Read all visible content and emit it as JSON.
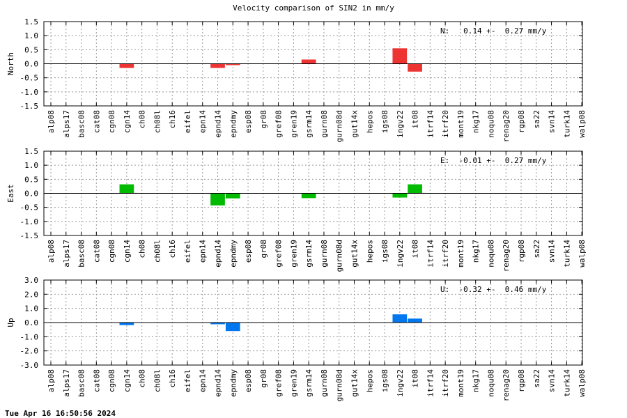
{
  "title": "Velocity comparison of SIN2 in mm/y",
  "timestamp": "Tue Apr 16 16:50:56 2024",
  "chart_data": [
    {
      "type": "bar",
      "ylabel": "North",
      "summary": "N:   0.14 +-  0.27 mm/y",
      "color": "#ee3333",
      "ylim": [
        -1.5,
        1.5
      ],
      "yticks": [
        -1.5,
        -1.0,
        -0.5,
        0.0,
        0.5,
        1.0,
        1.5
      ],
      "ytick_labels": [
        "-1.5",
        "-1.0",
        "-0.5",
        "0.0",
        "0.5",
        "1.0",
        "1.5"
      ],
      "grid": true,
      "categories": [
        "alp08",
        "alps17",
        "basc08",
        "cat08",
        "cgn08",
        "cgn14",
        "ch08",
        "ch08l",
        "ch16",
        "eifel",
        "epn14",
        "epnd14",
        "epndmy",
        "esp08",
        "gr08",
        "gref08",
        "gren19",
        "gsrm14",
        "gurn08",
        "gurn08d",
        "gut14x",
        "hepos",
        "igs08",
        "ingv22",
        "it08",
        "itrf14",
        "itrf20",
        "mont19",
        "nkg17",
        "noqu08",
        "renag20",
        "rgp08",
        "sa22",
        "svn14",
        "turk14",
        "walp08"
      ],
      "values": [
        0,
        0,
        0,
        0,
        0,
        -0.15,
        0,
        0,
        0,
        0,
        0,
        -0.15,
        -0.05,
        0,
        0,
        0,
        0,
        0.15,
        0,
        0,
        0,
        0,
        0,
        0.55,
        -0.28,
        0,
        0,
        0,
        0,
        0,
        0,
        0,
        0,
        0,
        0,
        0
      ]
    },
    {
      "type": "bar",
      "ylabel": "East",
      "summary": "E:  -0.01 +-  0.27 mm/y",
      "color": "#00bb00",
      "ylim": [
        -1.5,
        1.5
      ],
      "yticks": [
        -1.5,
        -1.0,
        -0.5,
        0.0,
        0.5,
        1.0,
        1.5
      ],
      "ytick_labels": [
        "-1.5",
        "-1.0",
        "-0.5",
        "0.0",
        "0.5",
        "1.0",
        "1.5"
      ],
      "grid": true,
      "categories": [
        "alp08",
        "alps17",
        "basc08",
        "cat08",
        "cgn08",
        "cgn14",
        "ch08",
        "ch08l",
        "ch16",
        "eifel",
        "epn14",
        "epnd14",
        "epndmy",
        "esp08",
        "gr08",
        "gref08",
        "gren19",
        "gsrm14",
        "gurn08",
        "gurn08d",
        "gut14x",
        "hepos",
        "igs08",
        "ingv22",
        "it08",
        "itrf14",
        "itrf20",
        "mont19",
        "nkg17",
        "noqu08",
        "renag20",
        "rgp08",
        "sa22",
        "svn14",
        "turk14",
        "walp08"
      ],
      "values": [
        0,
        0,
        0,
        0,
        0,
        0.32,
        0,
        0,
        0,
        0,
        0,
        -0.43,
        -0.18,
        0,
        0,
        0,
        0,
        -0.17,
        0,
        0,
        0,
        0,
        0,
        -0.15,
        0.32,
        0,
        0,
        0,
        0,
        0,
        0,
        0,
        0,
        0,
        0,
        0
      ]
    },
    {
      "type": "bar",
      "ylabel": "Up",
      "summary": "U:  -0.32 +-  0.46 mm/y",
      "color": "#0077ee",
      "ylim": [
        -3.0,
        3.0
      ],
      "yticks": [
        -3.0,
        -2.0,
        -1.0,
        0.0,
        1.0,
        2.0,
        3.0
      ],
      "ytick_labels": [
        "-3.0",
        "-2.0",
        "-1.0",
        "0.0",
        "1.0",
        "2.0",
        "3.0"
      ],
      "grid": true,
      "categories": [
        "alp08",
        "alps17",
        "basc08",
        "cat08",
        "cgn08",
        "cgn14",
        "ch08",
        "ch08l",
        "ch16",
        "eifel",
        "epn14",
        "epnd14",
        "epndmy",
        "esp08",
        "gr08",
        "gref08",
        "gren19",
        "gsrm14",
        "gurn08",
        "gurn08d",
        "gut14x",
        "hepos",
        "igs08",
        "ingv22",
        "it08",
        "itrf14",
        "itrf20",
        "mont19",
        "nkg17",
        "noqu08",
        "renag20",
        "rgp08",
        "sa22",
        "svn14",
        "turk14",
        "walp08"
      ],
      "values": [
        0,
        0,
        0,
        0,
        0,
        -0.18,
        0,
        0,
        0,
        0,
        0,
        -0.12,
        -0.6,
        0,
        0,
        0,
        0,
        0,
        0,
        0,
        0,
        0,
        0,
        0.58,
        0.28,
        0,
        0,
        0,
        0,
        0,
        0,
        0,
        0,
        0,
        0,
        0
      ]
    }
  ]
}
